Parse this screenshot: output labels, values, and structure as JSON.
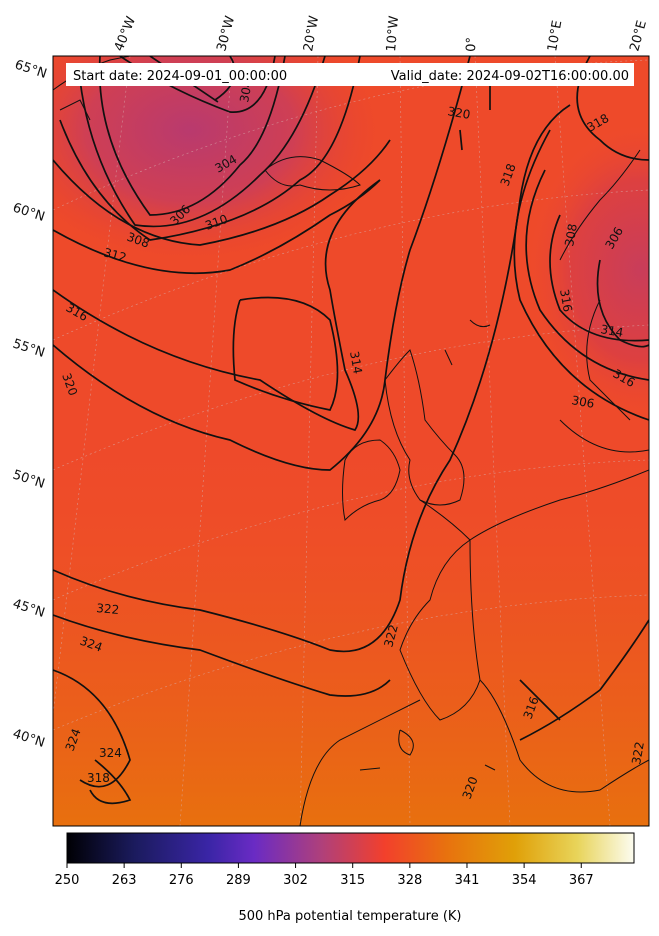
{
  "header": {
    "start_date": "Start date: 2024-09-01_00:00:00",
    "valid_date": "Valid_date: 2024-09-02T16:00:00.00"
  },
  "map": {
    "lon_labels": [
      "40°W",
      "30°W",
      "20°W",
      "10°W",
      "0°",
      "10°E",
      "20°E"
    ],
    "lat_labels": [
      "65°N",
      "60°N",
      "55°N",
      "50°N",
      "45°N",
      "40°N"
    ],
    "contour_labels": [
      "304",
      "304",
      "306",
      "306",
      "308",
      "310",
      "312",
      "316",
      "320",
      "318",
      "314",
      "320",
      "322",
      "324",
      "324",
      "324",
      "318",
      "322",
      "316",
      "318",
      "308",
      "316",
      "314",
      "316",
      "306",
      "320",
      "322",
      "320",
      "322"
    ]
  },
  "colorbar": {
    "label": "500 hPa potential temperature (K)",
    "ticks": [
      "250",
      "263",
      "276",
      "289",
      "302",
      "315",
      "328",
      "341",
      "354",
      "367"
    ],
    "colors": [
      "#000004",
      "#1b1b5e",
      "#3a25a6",
      "#6a2bc4",
      "#b0407a",
      "#f2402c",
      "#e8720e",
      "#e0a008",
      "#e8d45a",
      "#fcfcf0"
    ]
  }
}
